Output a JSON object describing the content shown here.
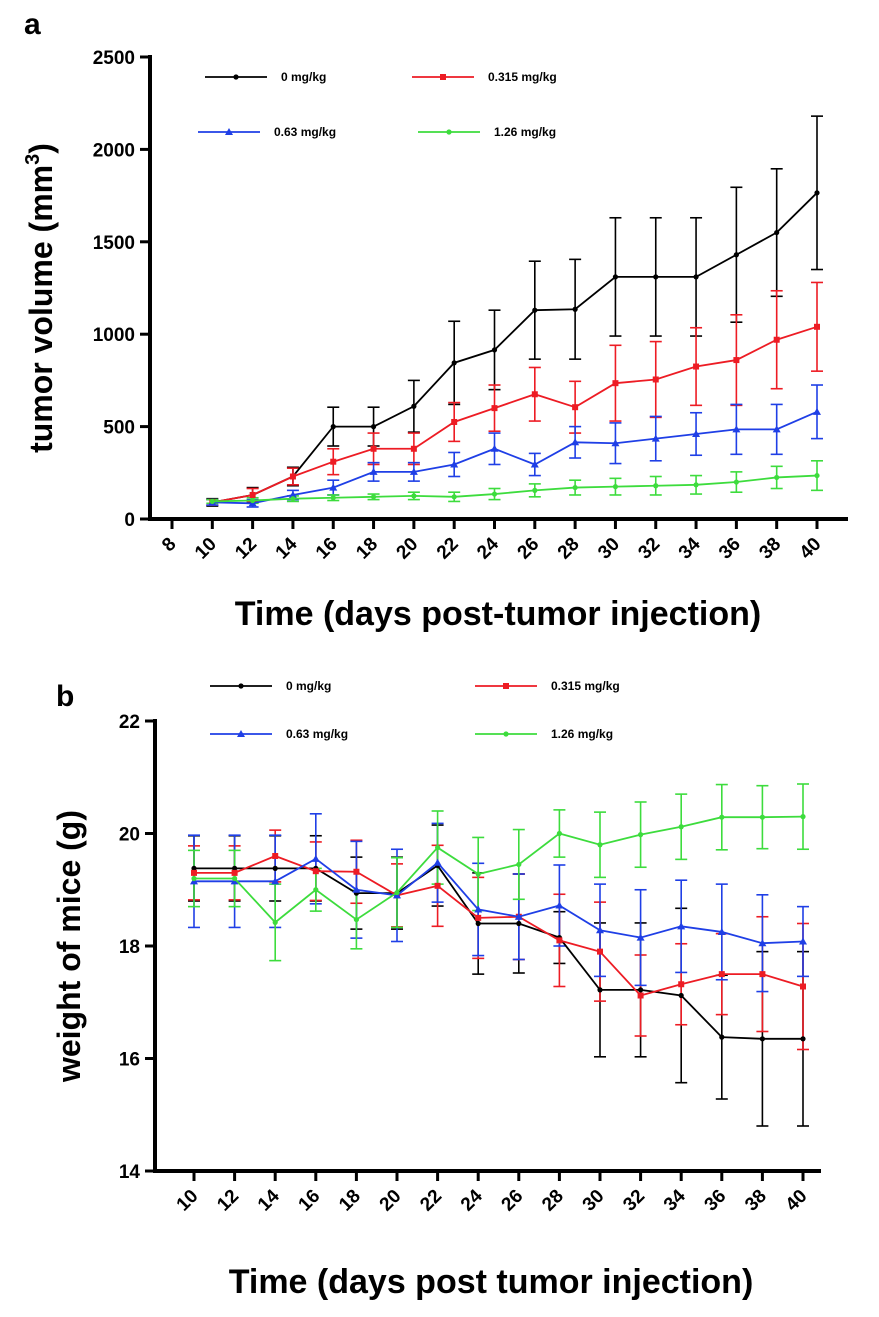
{
  "colors": {
    "s0": "#000000",
    "s1": "#ed1c24",
    "s2": "#1f3fe6",
    "s3": "#3ddc3d"
  },
  "chart_data": [
    {
      "panel": "a",
      "type": "line",
      "error_bars": true,
      "xlabel": "Time (days post-tumor injection)",
      "ylabel_main": "tumor volume (mm",
      "ylabel_sup": "3",
      "ylabel_tail": ")",
      "xlim": [
        8,
        40
      ],
      "ylim": [
        0,
        2500
      ],
      "xticks": [
        8,
        10,
        12,
        14,
        16,
        18,
        20,
        22,
        24,
        26,
        28,
        30,
        32,
        34,
        36,
        38,
        40
      ],
      "yticks": [
        0,
        500,
        1000,
        1500,
        2000,
        2500
      ],
      "legend": "top-left, two rows",
      "x": [
        10,
        12,
        14,
        16,
        18,
        20,
        22,
        24,
        26,
        28,
        30,
        32,
        34,
        36,
        38,
        40
      ],
      "series": [
        {
          "name": "0 mg/kg",
          "color_key": "s0",
          "marker": "dot",
          "values": [
            90,
            130,
            230,
            500,
            500,
            610,
            845,
            915,
            1130,
            1135,
            1310,
            1310,
            1310,
            1430,
            1550,
            1765
          ],
          "errors": [
            20,
            40,
            50,
            105,
            105,
            140,
            225,
            215,
            265,
            270,
            320,
            320,
            320,
            365,
            345,
            415
          ]
        },
        {
          "name": "0.315 mg/kg",
          "color_key": "s1",
          "marker": "square",
          "values": [
            90,
            130,
            230,
            310,
            380,
            380,
            525,
            600,
            675,
            605,
            735,
            755,
            825,
            860,
            970,
            1040
          ],
          "errors": [
            15,
            35,
            45,
            70,
            85,
            85,
            105,
            125,
            145,
            140,
            205,
            205,
            210,
            245,
            265,
            240
          ]
        },
        {
          "name": "0.63 mg/kg",
          "color_key": "s2",
          "marker": "triangle",
          "values": [
            90,
            85,
            130,
            170,
            255,
            255,
            295,
            380,
            295,
            415,
            410,
            435,
            460,
            485,
            485,
            580
          ],
          "errors": [
            15,
            20,
            25,
            40,
            50,
            50,
            65,
            85,
            60,
            85,
            110,
            120,
            115,
            135,
            135,
            145
          ]
        },
        {
          "name": "1.26 mg/kg",
          "color_key": "s3",
          "marker": "dot",
          "values": [
            95,
            100,
            110,
            115,
            120,
            125,
            120,
            135,
            155,
            170,
            175,
            180,
            185,
            200,
            225,
            235
          ],
          "errors": [
            10,
            15,
            15,
            15,
            15,
            20,
            25,
            30,
            35,
            40,
            45,
            50,
            50,
            55,
            60,
            80
          ]
        }
      ]
    },
    {
      "panel": "b",
      "type": "line",
      "error_bars": true,
      "xlabel": "Time (days post tumor injection)",
      "ylabel_main": "weight of mice (g)",
      "xlim": [
        9,
        41
      ],
      "ylim": [
        14,
        22
      ],
      "xticks": [
        10,
        12,
        14,
        16,
        18,
        20,
        22,
        24,
        26,
        28,
        30,
        32,
        34,
        36,
        38,
        40
      ],
      "yticks": [
        14,
        16,
        18,
        20,
        22
      ],
      "legend": "top-left, two rows",
      "x": [
        10,
        12,
        14,
        16,
        18,
        20,
        22,
        24,
        26,
        28,
        30,
        32,
        34,
        36,
        38,
        40
      ],
      "series": [
        {
          "name": "0 mg/kg",
          "color_key": "s0",
          "marker": "dot",
          "values": [
            19.38,
            19.38,
            19.38,
            19.38,
            18.94,
            18.94,
            19.43,
            18.4,
            18.4,
            18.15,
            17.22,
            17.22,
            17.12,
            16.38,
            16.35,
            16.35
          ],
          "errors": [
            0.58,
            0.58,
            0.58,
            0.58,
            0.64,
            0.64,
            0.72,
            0.9,
            0.88,
            0.46,
            1.19,
            1.19,
            1.55,
            1.1,
            1.55,
            1.55
          ]
        },
        {
          "name": "0.315 mg/kg",
          "color_key": "s1",
          "marker": "square",
          "values": [
            19.3,
            19.3,
            19.6,
            19.33,
            19.32,
            18.9,
            19.07,
            18.5,
            18.52,
            18.1,
            17.9,
            17.12,
            17.32,
            17.5,
            17.5,
            17.28
          ],
          "errors": [
            0.48,
            0.48,
            0.46,
            0.52,
            0.56,
            0.56,
            0.72,
            0.72,
            0.76,
            0.82,
            0.88,
            0.72,
            0.72,
            0.72,
            1.02,
            1.12
          ]
        },
        {
          "name": "0.63 mg/kg",
          "color_key": "s2",
          "marker": "triangle",
          "values": [
            19.15,
            19.15,
            19.15,
            19.55,
            19.0,
            18.9,
            19.48,
            18.65,
            18.52,
            18.72,
            18.28,
            18.15,
            18.35,
            18.25,
            18.05,
            18.08
          ],
          "errors": [
            0.82,
            0.82,
            0.82,
            0.8,
            0.86,
            0.82,
            0.7,
            0.82,
            0.76,
            0.72,
            0.82,
            0.85,
            0.82,
            0.85,
            0.86,
            0.62
          ]
        },
        {
          "name": "1.26 mg/kg",
          "color_key": "s3",
          "marker": "dot",
          "values": [
            19.2,
            19.2,
            18.42,
            19.0,
            18.47,
            18.95,
            19.75,
            19.28,
            19.45,
            20.0,
            19.8,
            19.98,
            20.12,
            20.29,
            20.29,
            20.3
          ],
          "errors": [
            0.5,
            0.5,
            0.68,
            0.38,
            0.52,
            0.62,
            0.65,
            0.65,
            0.62,
            0.42,
            0.58,
            0.58,
            0.58,
            0.58,
            0.56,
            0.58
          ]
        }
      ]
    }
  ]
}
